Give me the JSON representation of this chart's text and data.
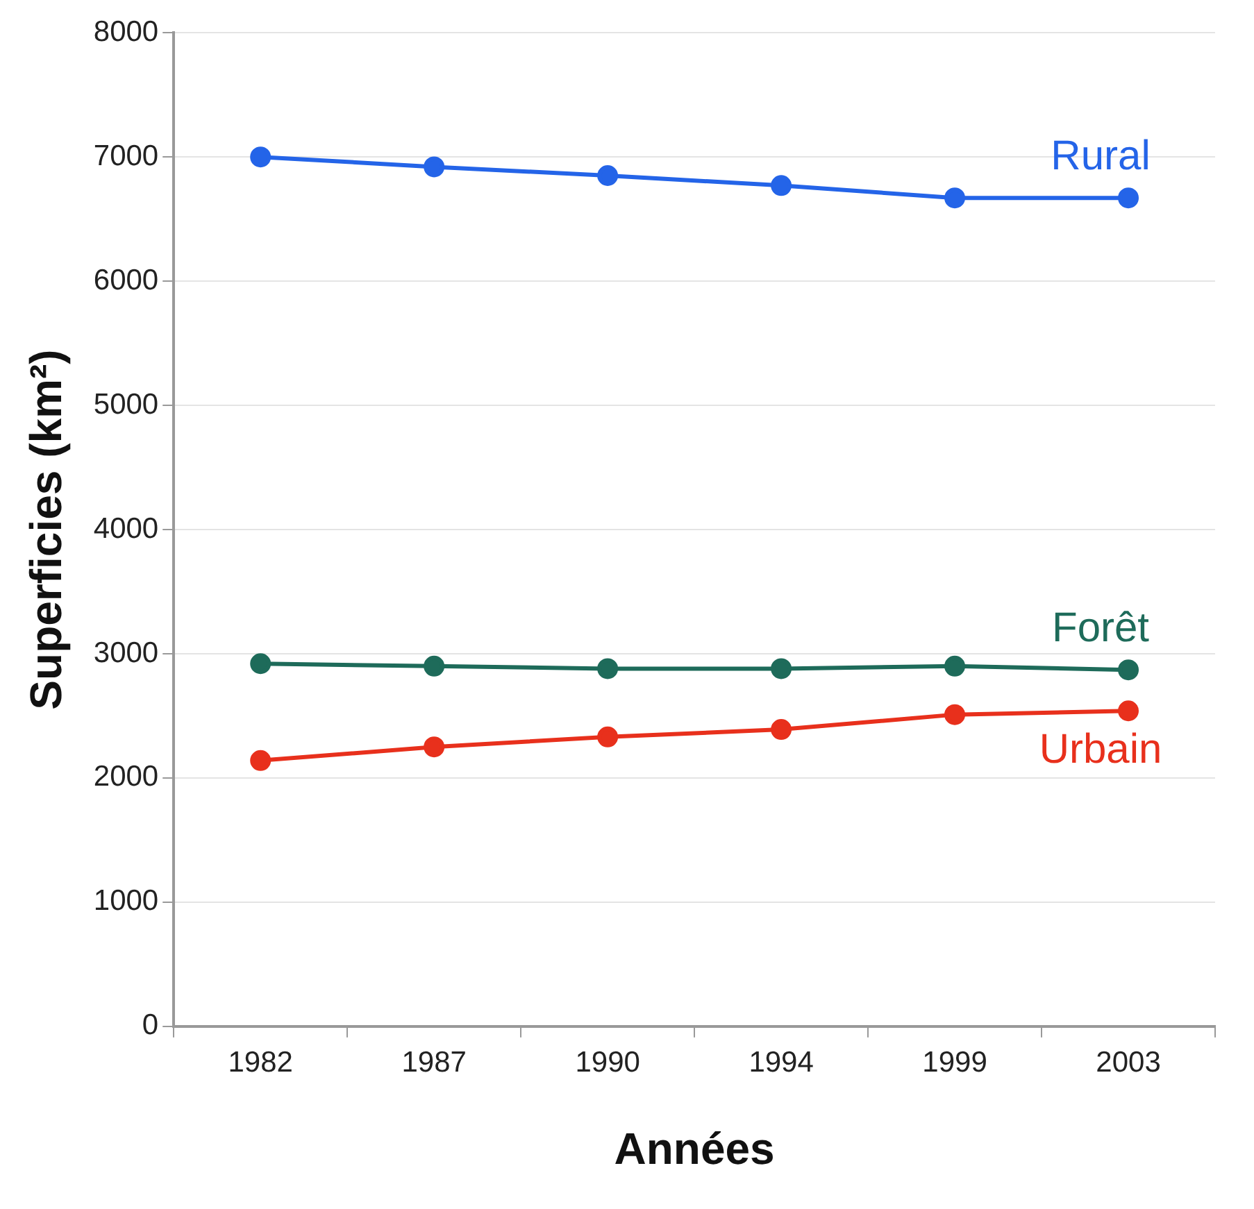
{
  "chart_data": {
    "type": "line",
    "xlabel": "Années",
    "ylabel": "Superficies (km²)",
    "categories": [
      "1982",
      "1987",
      "1990",
      "1994",
      "1999",
      "2003"
    ],
    "series": [
      {
        "name": "Rural",
        "color": "#2464e8",
        "values": [
          7000,
          6920,
          6850,
          6770,
          6670,
          6670
        ]
      },
      {
        "name": "Forêt",
        "color": "#1e6b5a",
        "values": [
          2920,
          2900,
          2880,
          2880,
          2900,
          2870
        ]
      },
      {
        "name": "Urbain",
        "color": "#e8301c",
        "values": [
          2140,
          2250,
          2330,
          2390,
          2510,
          2540
        ]
      }
    ],
    "ylim": [
      0,
      8000
    ],
    "yticks": [
      0,
      1000,
      2000,
      3000,
      4000,
      5000,
      6000,
      7000,
      8000
    ],
    "grid": "y",
    "legend": false,
    "marker": "circle",
    "line_style": "solid"
  }
}
